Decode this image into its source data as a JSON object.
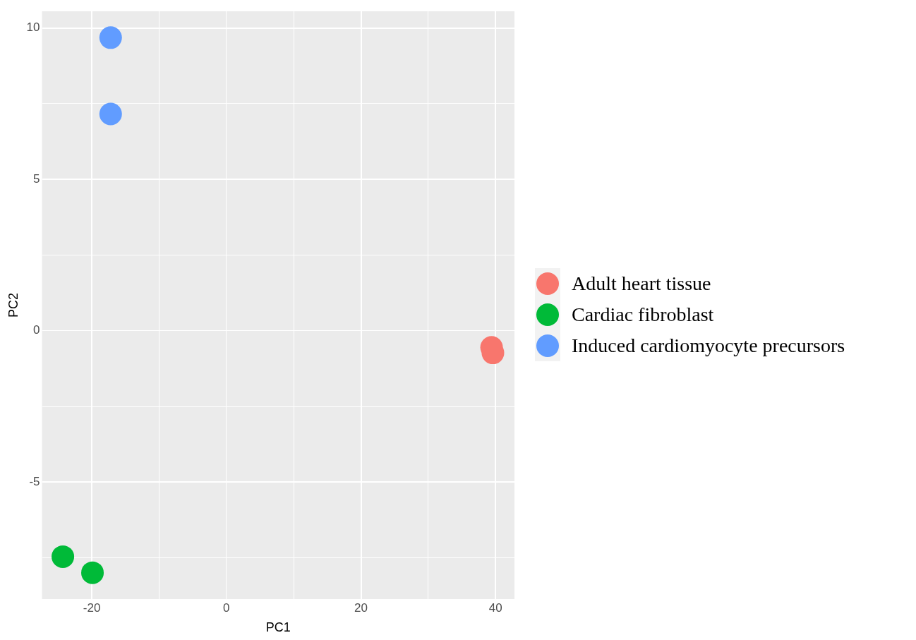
{
  "chart_data": {
    "type": "scatter",
    "xlabel": "PC1",
    "ylabel": "PC2",
    "xlim": [
      -27.4,
      42.8
    ],
    "xticks": [
      -20,
      {
        "value": -10,
        "label": null
      },
      0,
      {
        "value": 10,
        "label": null
      },
      20,
      {
        "value": 30,
        "label": null
      },
      40
    ],
    "ylim": [
      -8.86,
      10.55
    ],
    "yticks": [
      {
        "value": -7.5,
        "label": null
      },
      -5,
      {
        "value": -2.5,
        "label": null
      },
      0,
      {
        "value": 2.5,
        "label": null
      },
      5,
      {
        "value": 7.5,
        "label": null
      },
      10
    ],
    "grid": true,
    "legend": "right",
    "marker": "circle",
    "series": [
      {
        "name": "Adult heart tissue",
        "color": "#f8766d",
        "x": [
          39.4,
          39.6
        ],
        "values": [
          -0.55,
          -0.73
        ]
      },
      {
        "name": "Cardiac fibroblast",
        "color": "#00ba38",
        "x": [
          -24.3,
          -19.9
        ],
        "values": [
          -7.46,
          -7.99
        ]
      },
      {
        "name": "Induced cardiomyocyte precursors",
        "color": "#619cff",
        "x": [
          -17.2,
          -17.2
        ],
        "values": [
          9.68,
          7.16
        ]
      }
    ]
  }
}
